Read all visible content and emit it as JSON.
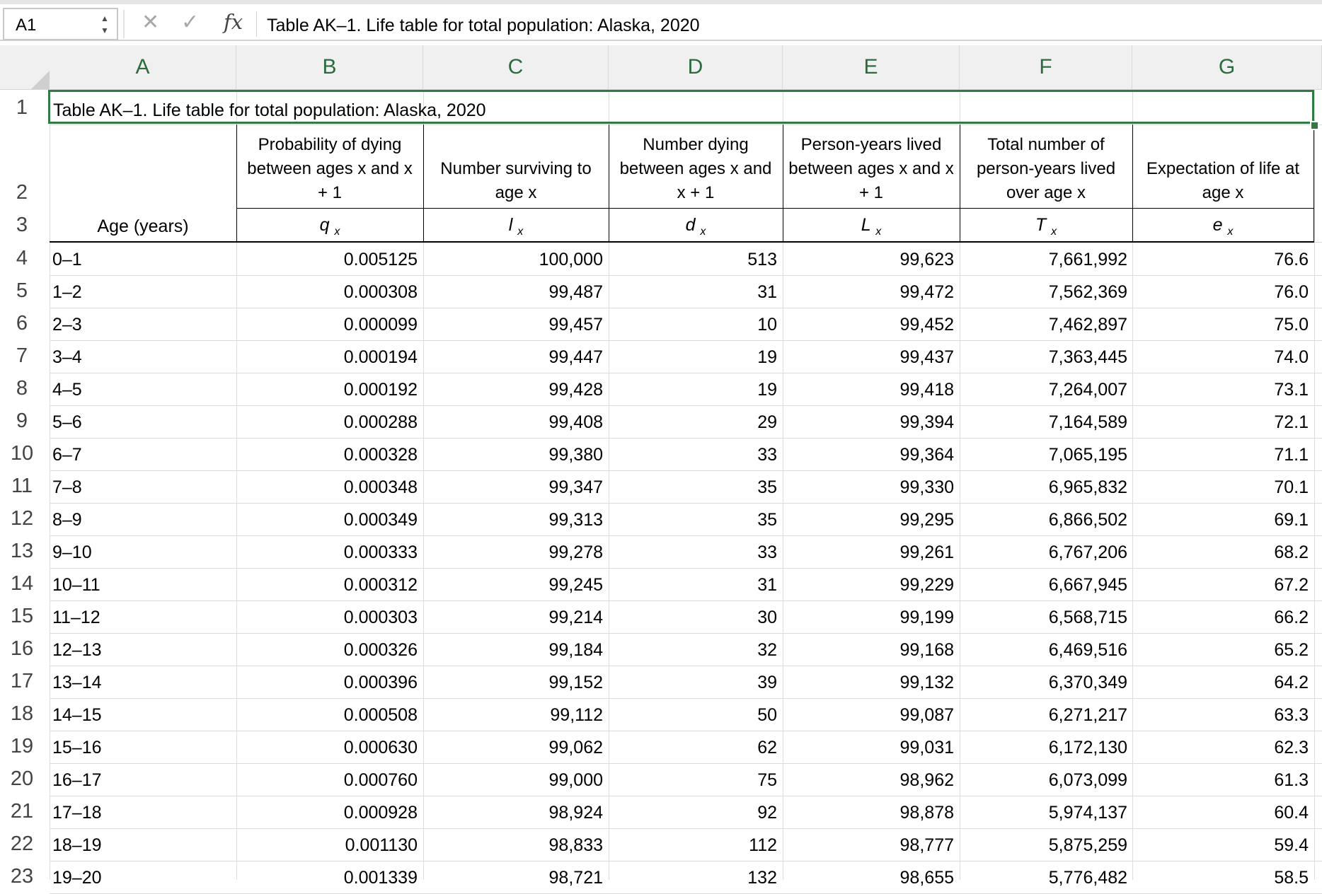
{
  "name_box": "A1",
  "formula_bar": {
    "fx_label": "fx",
    "content": "Table AK–1. Life table for total population: Alaska, 2020"
  },
  "columns": [
    "A",
    "B",
    "C",
    "D",
    "E",
    "F",
    "G"
  ],
  "title": "Table AK–1. Life table for total population: Alaska, 2020",
  "header_labels": {
    "age": "Age (years)",
    "b_lines": [
      "Probability of dying",
      "between ages x and x",
      "+ 1"
    ],
    "c_lines": [
      "Number surviving to",
      "age x"
    ],
    "d_lines": [
      "Number dying",
      "between ages x and",
      "x + 1"
    ],
    "e_lines": [
      "Person-years lived",
      "between ages x and x",
      "+ 1"
    ],
    "f_lines": [
      "Total number of",
      "person-years lived",
      "over age x"
    ],
    "g_lines": [
      "Expectation of life at",
      "age x"
    ]
  },
  "symbols": [
    {
      "base": "q",
      "sub": "x"
    },
    {
      "base": "l",
      "sub": "x"
    },
    {
      "base": "d",
      "sub": "x"
    },
    {
      "base": "L",
      "sub": "x"
    },
    {
      "base": "T",
      "sub": "x"
    },
    {
      "base": "e",
      "sub": "x"
    }
  ],
  "rows": [
    {
      "n": "4",
      "age": "0–1",
      "qx": "0.005125",
      "lx": "100,000",
      "dx": "513",
      "Lx": "99,623",
      "Tx": "7,661,992",
      "ex": "76.6"
    },
    {
      "n": "5",
      "age": "1–2",
      "qx": "0.000308",
      "lx": "99,487",
      "dx": "31",
      "Lx": "99,472",
      "Tx": "7,562,369",
      "ex": "76.0"
    },
    {
      "n": "6",
      "age": "2–3",
      "qx": "0.000099",
      "lx": "99,457",
      "dx": "10",
      "Lx": "99,452",
      "Tx": "7,462,897",
      "ex": "75.0"
    },
    {
      "n": "7",
      "age": "3–4",
      "qx": "0.000194",
      "lx": "99,447",
      "dx": "19",
      "Lx": "99,437",
      "Tx": "7,363,445",
      "ex": "74.0"
    },
    {
      "n": "8",
      "age": "4–5",
      "qx": "0.000192",
      "lx": "99,428",
      "dx": "19",
      "Lx": "99,418",
      "Tx": "7,264,007",
      "ex": "73.1"
    },
    {
      "n": "9",
      "age": "5–6",
      "qx": "0.000288",
      "lx": "99,408",
      "dx": "29",
      "Lx": "99,394",
      "Tx": "7,164,589",
      "ex": "72.1"
    },
    {
      "n": "10",
      "age": "6–7",
      "qx": "0.000328",
      "lx": "99,380",
      "dx": "33",
      "Lx": "99,364",
      "Tx": "7,065,195",
      "ex": "71.1"
    },
    {
      "n": "11",
      "age": "7–8",
      "qx": "0.000348",
      "lx": "99,347",
      "dx": "35",
      "Lx": "99,330",
      "Tx": "6,965,832",
      "ex": "70.1"
    },
    {
      "n": "12",
      "age": "8–9",
      "qx": "0.000349",
      "lx": "99,313",
      "dx": "35",
      "Lx": "99,295",
      "Tx": "6,866,502",
      "ex": "69.1"
    },
    {
      "n": "13",
      "age": "9–10",
      "qx": "0.000333",
      "lx": "99,278",
      "dx": "33",
      "Lx": "99,261",
      "Tx": "6,767,206",
      "ex": "68.2"
    },
    {
      "n": "14",
      "age": "10–11",
      "qx": "0.000312",
      "lx": "99,245",
      "dx": "31",
      "Lx": "99,229",
      "Tx": "6,667,945",
      "ex": "67.2"
    },
    {
      "n": "15",
      "age": "11–12",
      "qx": "0.000303",
      "lx": "99,214",
      "dx": "30",
      "Lx": "99,199",
      "Tx": "6,568,715",
      "ex": "66.2"
    },
    {
      "n": "16",
      "age": "12–13",
      "qx": "0.000326",
      "lx": "99,184",
      "dx": "32",
      "Lx": "99,168",
      "Tx": "6,469,516",
      "ex": "65.2"
    },
    {
      "n": "17",
      "age": "13–14",
      "qx": "0.000396",
      "lx": "99,152",
      "dx": "39",
      "Lx": "99,132",
      "Tx": "6,370,349",
      "ex": "64.2"
    },
    {
      "n": "18",
      "age": "14–15",
      "qx": "0.000508",
      "lx": "99,112",
      "dx": "50",
      "Lx": "99,087",
      "Tx": "6,271,217",
      "ex": "63.3"
    },
    {
      "n": "19",
      "age": "15–16",
      "qx": "0.000630",
      "lx": "99,062",
      "dx": "62",
      "Lx": "99,031",
      "Tx": "6,172,130",
      "ex": "62.3"
    },
    {
      "n": "20",
      "age": "16–17",
      "qx": "0.000760",
      "lx": "99,000",
      "dx": "75",
      "Lx": "98,962",
      "Tx": "6,073,099",
      "ex": "61.3"
    },
    {
      "n": "21",
      "age": "17–18",
      "qx": "0.000928",
      "lx": "98,924",
      "dx": "92",
      "Lx": "98,878",
      "Tx": "5,974,137",
      "ex": "60.4"
    },
    {
      "n": "22",
      "age": "18–19",
      "qx": "0.001130",
      "lx": "98,833",
      "dx": "112",
      "Lx": "98,777",
      "Tx": "5,875,259",
      "ex": "59.4"
    },
    {
      "n": "23",
      "age": "19–20",
      "qx": "0.001339",
      "lx": "98,721",
      "dx": "132",
      "Lx": "98,655",
      "Tx": "5,776,482",
      "ex": "58.5"
    }
  ],
  "colors": {
    "accent": "#2f7a45",
    "header_bg": "#f0f0f0",
    "column_letter": "#2b6b3d"
  }
}
